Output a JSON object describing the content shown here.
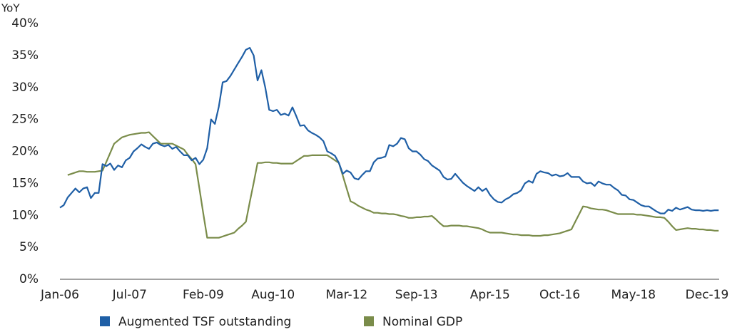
{
  "chart_data": {
    "type": "line",
    "y_label": "YoY",
    "categories": [
      "Jan-06",
      null,
      null,
      null,
      null,
      null,
      null,
      null,
      null,
      null,
      null,
      null,
      null,
      null,
      null,
      null,
      null,
      null,
      "Jul-07",
      null,
      null,
      null,
      null,
      null,
      null,
      null,
      null,
      null,
      null,
      null,
      null,
      null,
      null,
      null,
      null,
      null,
      null,
      "Feb-09",
      null,
      null,
      null,
      null,
      null,
      null,
      null,
      null,
      null,
      null,
      null,
      null,
      null,
      null,
      null,
      null,
      null,
      "Aug-10",
      null,
      null,
      null,
      null,
      null,
      null,
      null,
      null,
      null,
      null,
      null,
      null,
      null,
      null,
      null,
      null,
      null,
      null,
      "Mar-12",
      null,
      null,
      null,
      null,
      null,
      null,
      null,
      null,
      null,
      null,
      null,
      null,
      null,
      null,
      null,
      null,
      null,
      "Sep-13",
      null,
      null,
      null,
      null,
      null,
      null,
      null,
      null,
      null,
      null,
      null,
      null,
      null,
      null,
      null,
      null,
      null,
      null,
      "Apr-15",
      null,
      null,
      null,
      null,
      null,
      null,
      null,
      null,
      null,
      null,
      null,
      null,
      null,
      null,
      null,
      null,
      null,
      "Oct-16",
      null,
      null,
      null,
      null,
      null,
      null,
      null,
      null,
      null,
      null,
      null,
      null,
      null,
      null,
      null,
      null,
      null,
      null,
      "May-18",
      null,
      null,
      null,
      null,
      null,
      null,
      null,
      null,
      null,
      null,
      null,
      null,
      null,
      null,
      null,
      null,
      null,
      null,
      "Dec-19",
      null,
      null,
      null
    ],
    "series": [
      {
        "name": "Augmented TSF outstanding",
        "color": "#1f5fa6",
        "values": [
          11.2,
          11.6,
          12.8,
          13.5,
          14.2,
          13.6,
          14.2,
          14.4,
          12.7,
          13.5,
          13.5,
          18.0,
          17.7,
          18.1,
          17.1,
          17.8,
          17.5,
          18.6,
          19.0,
          20.0,
          20.5,
          21.1,
          20.7,
          20.4,
          21.2,
          21.4,
          21.0,
          20.8,
          21.0,
          20.4,
          20.7,
          20.0,
          19.4,
          19.4,
          18.6,
          19.0,
          18.0,
          18.7,
          20.5,
          25.0,
          24.3,
          27.0,
          30.8,
          31.0,
          31.8,
          32.8,
          33.8,
          34.8,
          35.9,
          36.2,
          35.0,
          31.1,
          32.7,
          30.0,
          26.5,
          26.3,
          26.5,
          25.7,
          25.9,
          25.6,
          26.9,
          25.5,
          24.0,
          24.1,
          23.3,
          22.9,
          22.6,
          22.2,
          21.6,
          20.0,
          19.7,
          19.3,
          18.2,
          16.5,
          17.0,
          16.7,
          15.8,
          15.6,
          16.3,
          16.9,
          16.9,
          18.3,
          18.9,
          19.0,
          19.2,
          21.0,
          20.8,
          21.2,
          22.1,
          21.9,
          20.5,
          20.0,
          20.0,
          19.5,
          18.8,
          18.5,
          17.8,
          17.4,
          17.0,
          16.0,
          15.6,
          15.7,
          16.5,
          15.8,
          15.1,
          14.6,
          14.2,
          13.8,
          14.4,
          13.8,
          14.2,
          13.2,
          12.5,
          12.1,
          12.0,
          12.5,
          12.8,
          13.3,
          13.5,
          13.9,
          15.0,
          15.4,
          15.1,
          16.5,
          16.9,
          16.7,
          16.6,
          16.2,
          16.4,
          16.1,
          16.2,
          16.6,
          16.0,
          16.0,
          16.0,
          15.3,
          15.0,
          15.1,
          14.6,
          15.3,
          15.0,
          14.8,
          14.8,
          14.3,
          13.9,
          13.2,
          13.1,
          12.5,
          12.4,
          12.0,
          11.6,
          11.4,
          11.4,
          11.0,
          10.6,
          10.3,
          10.3,
          10.9,
          10.7,
          11.2,
          10.9,
          11.1,
          11.3,
          10.9,
          10.8,
          10.8,
          10.7,
          10.8,
          10.7,
          10.8,
          10.8
        ]
      },
      {
        "name": "Nominal GDP",
        "color": "#7a8c4a",
        "values": [
          null,
          null,
          16.3,
          16.5,
          16.7,
          16.9,
          16.9,
          16.8,
          16.8,
          16.8,
          16.9,
          17.0,
          18.4,
          19.8,
          21.2,
          21.7,
          22.2,
          22.4,
          22.6,
          22.7,
          22.8,
          22.9,
          22.9,
          23.0,
          22.4,
          21.8,
          21.2,
          21.2,
          21.2,
          21.2,
          20.9,
          20.6,
          20.3,
          19.5,
          18.8,
          18.0,
          14.2,
          10.3,
          6.5,
          6.5,
          6.5,
          6.5,
          6.7,
          6.9,
          7.1,
          7.3,
          7.9,
          8.4,
          9.0,
          12.1,
          15.1,
          18.2,
          18.2,
          18.3,
          18.3,
          18.2,
          18.2,
          18.1,
          18.1,
          18.1,
          18.1,
          18.5,
          18.9,
          19.3,
          19.3,
          19.4,
          19.4,
          19.4,
          19.4,
          19.4,
          19.0,
          18.6,
          18.2,
          16.2,
          14.2,
          12.2,
          11.9,
          11.5,
          11.2,
          10.9,
          10.7,
          10.4,
          10.4,
          10.3,
          10.3,
          10.2,
          10.2,
          10.1,
          9.9,
          9.8,
          9.6,
          9.6,
          9.7,
          9.7,
          9.8,
          9.8,
          9.9,
          9.4,
          8.8,
          8.3,
          8.3,
          8.4,
          8.4,
          8.4,
          8.3,
          8.3,
          8.2,
          8.1,
          8.0,
          7.8,
          7.5,
          7.3,
          7.3,
          7.3,
          7.3,
          7.2,
          7.1,
          7.0,
          7.0,
          6.9,
          6.9,
          6.9,
          6.8,
          6.8,
          6.8,
          6.9,
          6.9,
          7.0,
          7.1,
          7.2,
          7.4,
          7.6,
          7.8,
          9.0,
          10.2,
          11.4,
          11.3,
          11.1,
          11.0,
          10.9,
          10.9,
          10.8,
          10.6,
          10.4,
          10.2,
          10.2,
          10.2,
          10.2,
          10.2,
          10.1,
          10.1,
          10.0,
          9.9,
          9.8,
          9.7,
          9.7,
          9.6,
          9.0,
          8.3,
          7.7,
          7.8,
          7.9,
          8.0,
          7.9,
          7.9,
          7.8,
          7.8,
          7.7,
          7.7,
          7.6,
          7.6
        ]
      }
    ],
    "ylim": [
      0,
      40
    ],
    "yticks": [
      {
        "value": 0,
        "label": "0%"
      },
      {
        "value": 5,
        "label": "5%"
      },
      {
        "value": 10,
        "label": "10%"
      },
      {
        "value": 15,
        "label": "15%"
      },
      {
        "value": 20,
        "label": "20%"
      },
      {
        "value": 25,
        "label": "25%"
      },
      {
        "value": 30,
        "label": "30%"
      },
      {
        "value": 35,
        "label": "35%"
      },
      {
        "value": 40,
        "label": "40%"
      }
    ],
    "grid": false,
    "legend": "bottom"
  }
}
